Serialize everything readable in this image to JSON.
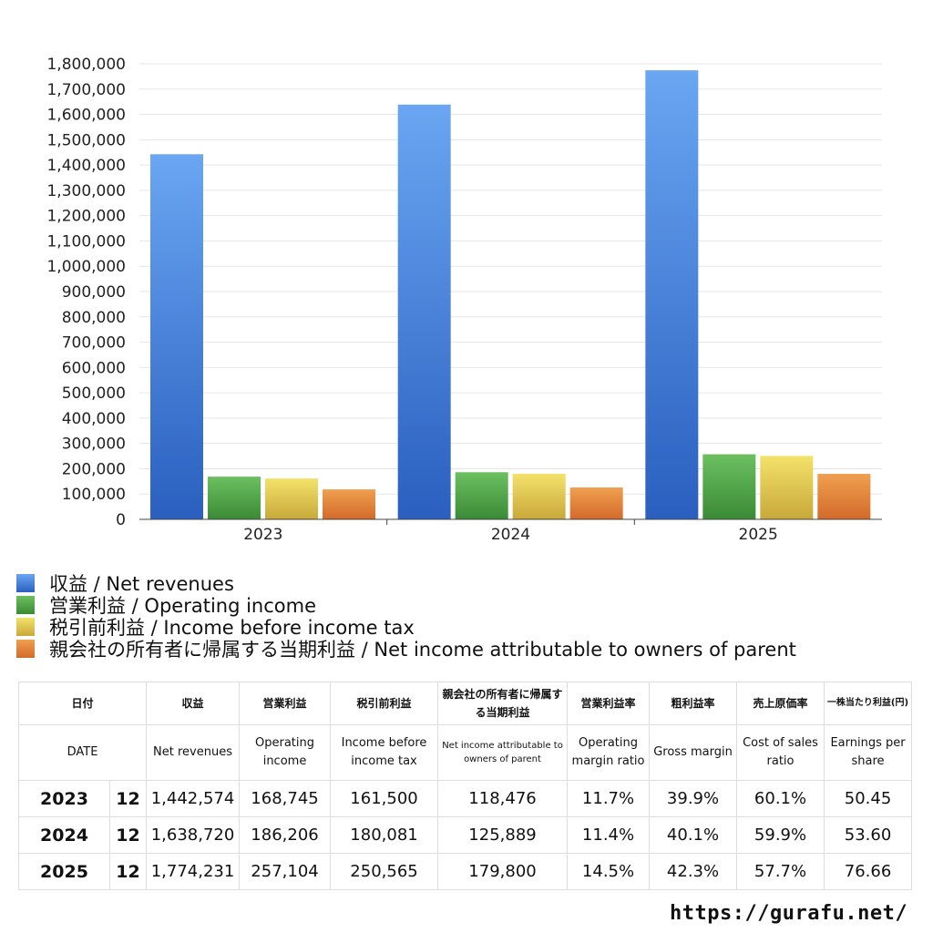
{
  "chart_data": {
    "type": "bar",
    "categories": [
      "2023",
      "2024",
      "2025"
    ],
    "series": [
      {
        "name": "収益 / Net revenues",
        "values": [
          1442574,
          1638720,
          1774231
        ],
        "color_top": "#6aa6f2",
        "color_bottom": "#2a5fbf"
      },
      {
        "name": "営業利益 / Operating income",
        "values": [
          168745,
          186206,
          257104
        ],
        "color_top": "#6cc060",
        "color_bottom": "#3a8a35"
      },
      {
        "name": "税引前利益 / Income before income tax",
        "values": [
          161500,
          180081,
          250565
        ],
        "color_top": "#f3e26a",
        "color_bottom": "#c8a83a"
      },
      {
        "name": "親会社の所有者に帰属する当期利益 / Net income attributable to owners of parent",
        "values": [
          118476,
          125889,
          179800
        ],
        "color_top": "#f0a050",
        "color_bottom": "#d26a2a"
      }
    ],
    "ylim": [
      0,
      1800000
    ],
    "yticks": [
      0,
      100000,
      200000,
      300000,
      400000,
      500000,
      600000,
      700000,
      800000,
      900000,
      1000000,
      1100000,
      1200000,
      1300000,
      1400000,
      1500000,
      1600000,
      1700000,
      1800000
    ],
    "ytick_labels": [
      "0",
      "100,000",
      "200,000",
      "300,000",
      "400,000",
      "500,000",
      "600,000",
      "700,000",
      "800,000",
      "900,000",
      "1,000,000",
      "1,100,000",
      "1,200,000",
      "1,300,000",
      "1,400,000",
      "1,500,000",
      "1,600,000",
      "1,700,000",
      "1,800,000"
    ],
    "grid": true,
    "legend_position": "bottom"
  },
  "table": {
    "header_jp": [
      "日付",
      "",
      "収益",
      "営業利益",
      "税引前利益",
      "親会社の所有者に帰属する当期利益",
      "営業利益率",
      "粗利益率",
      "売上原価率",
      "一株当たり利益(円)"
    ],
    "header_en": [
      "DATE",
      "",
      "Net revenues",
      "Operating income",
      "Income before income tax",
      "Net income attributable to owners of parent",
      "Operating margin ratio",
      "Gross margin",
      "Cost of sales ratio",
      "Earnings per share"
    ],
    "rows": [
      {
        "year": "2023",
        "month": "12",
        "net_revenues": "1,442,574",
        "operating_income": "168,745",
        "income_before_tax": "161,500",
        "net_income_parent": "118,476",
        "operating_margin": "11.7%",
        "gross_margin": "39.9%",
        "cost_of_sales": "60.1%",
        "eps": "50.45"
      },
      {
        "year": "2024",
        "month": "12",
        "net_revenues": "1,638,720",
        "operating_income": "186,206",
        "income_before_tax": "180,081",
        "net_income_parent": "125,889",
        "operating_margin": "11.4%",
        "gross_margin": "40.1%",
        "cost_of_sales": "59.9%",
        "eps": "53.60"
      },
      {
        "year": "2025",
        "month": "12",
        "net_revenues": "1,774,231",
        "operating_income": "257,104",
        "income_before_tax": "250,565",
        "net_income_parent": "179,800",
        "operating_margin": "14.5%",
        "gross_margin": "42.3%",
        "cost_of_sales": "57.7%",
        "eps": "76.66"
      }
    ]
  },
  "footer": {
    "site": "https://gurafu.net/"
  }
}
